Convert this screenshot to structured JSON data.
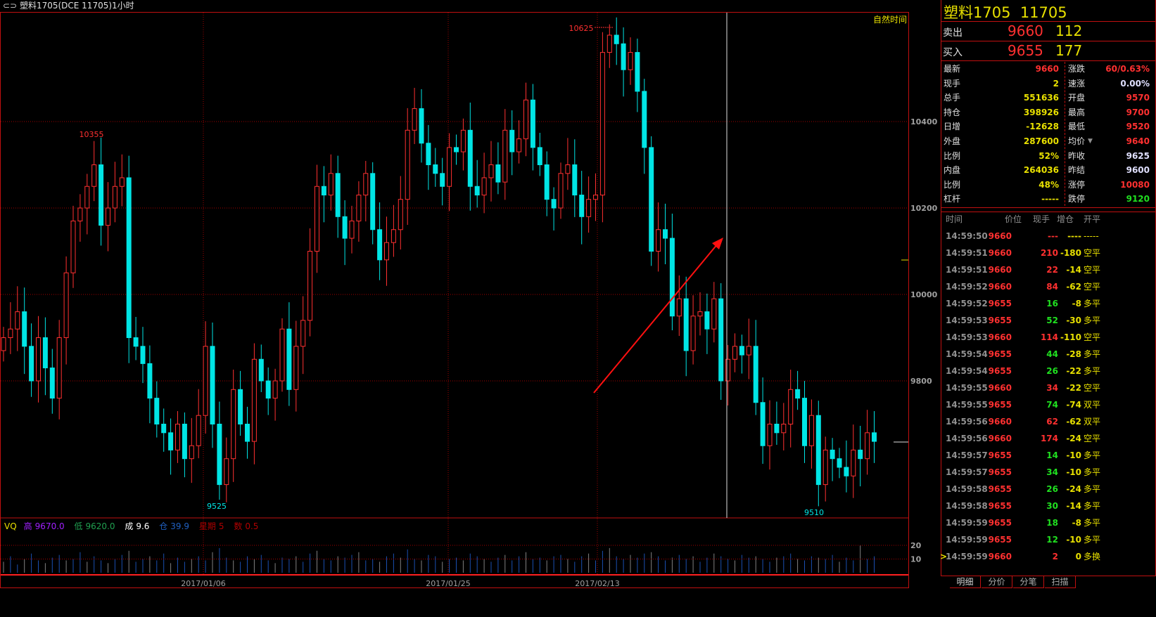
{
  "window": {
    "title": "塑料1705(DCE 11705)1小时",
    "link_icon": "link-icon"
  },
  "chart": {
    "time_mode": "自然时间",
    "y_ticks": [
      10400,
      10200,
      10000,
      9800
    ],
    "x_ticks": [
      "2017/01/06",
      "2017/01/25",
      "2017/02/13"
    ],
    "annotations": {
      "high_left": "10355",
      "low_left": "9525",
      "high_top": "10625",
      "low_right": "9510"
    },
    "colors": {
      "up": "#ff3030",
      "down": "#00e5e5",
      "grid": "#a00000",
      "arrow": "#ff1010"
    }
  },
  "chart_data": {
    "type": "candlestick",
    "x_tick_labels": [
      "2017/01/06",
      "2017/01/25",
      "2017/02/13"
    ],
    "ylim": [
      9486,
      10616
    ],
    "closes": [
      9900,
      9920,
      9960,
      9880,
      9800,
      9900,
      9830,
      9760,
      9900,
      10050,
      10170,
      10200,
      10250,
      10300,
      10160,
      10200,
      10250,
      10270,
      9900,
      9880,
      9840,
      9760,
      9700,
      9680,
      9640,
      9700,
      9620,
      9650,
      9720,
      9880,
      9700,
      9560,
      9620,
      9780,
      9700,
      9660,
      9850,
      9800,
      9760,
      9800,
      9920,
      9780,
      9880,
      9940,
      10100,
      10250,
      10230,
      10280,
      10180,
      10130,
      10170,
      10230,
      10280,
      10150,
      10080,
      10120,
      10150,
      10220,
      10380,
      10430,
      10350,
      10300,
      10280,
      10250,
      10340,
      10330,
      10380,
      10250,
      10230,
      10270,
      10300,
      10260,
      10380,
      10330,
      10360,
      10450,
      10340,
      10300,
      10220,
      10200,
      10280,
      10300,
      10230,
      10180,
      10220,
      10230,
      10560,
      10600,
      10580,
      10520,
      10560,
      10470,
      10340,
      10100,
      10150,
      10130,
      9950,
      9990,
      9870,
      9950,
      9960,
      9920,
      9990,
      9800,
      9850,
      9880,
      9860,
      9880,
      9750,
      9650,
      9700,
      9680,
      9700,
      9780,
      9760,
      9650,
      9720,
      9560,
      9640,
      9620,
      9600,
      9580,
      9640,
      9620,
      9680,
      9660
    ],
    "extremes": [
      {
        "index": 13,
        "high": 10355
      },
      {
        "index": 31,
        "low": 9525
      },
      {
        "index": 87,
        "high": 10625
      },
      {
        "index": 117,
        "low": 9510
      }
    ],
    "volume": {
      "y_ticks": [
        20,
        10
      ],
      "values": [
        8,
        12,
        6,
        10,
        14,
        9,
        7,
        11,
        13,
        9,
        10,
        15,
        8,
        12,
        9,
        7,
        10,
        13,
        16,
        8,
        10,
        12,
        9,
        14,
        7,
        11,
        8,
        10,
        12,
        9,
        15,
        18,
        11,
        9,
        8,
        12,
        10,
        13,
        9,
        7,
        11,
        10,
        12,
        8,
        14,
        16,
        10,
        9,
        12,
        11,
        13,
        15,
        9,
        10,
        8,
        12,
        14,
        11,
        17,
        10,
        9,
        13,
        12,
        8,
        10,
        11,
        9,
        14,
        12,
        10,
        8,
        11,
        13,
        9,
        12,
        15,
        10,
        11,
        9,
        12,
        13,
        10,
        8,
        12,
        14,
        9,
        16,
        18,
        12,
        10,
        13,
        11,
        14,
        15,
        12,
        9,
        11,
        13,
        10,
        12,
        8,
        11,
        14,
        12,
        10,
        9,
        13,
        11,
        12,
        10,
        8,
        11,
        12,
        14,
        10,
        9,
        12,
        11,
        10,
        13,
        8,
        11,
        9,
        20,
        10,
        12
      ]
    }
  },
  "vq": {
    "label": "VQ",
    "high_label": "高",
    "high": "9670.0",
    "low_label": "低",
    "low": "9620.0",
    "vol_label": "成",
    "vol": "9.6",
    "oi_label": "仓",
    "oi": "39.9",
    "week_label": "星期",
    "week": "5",
    "count_label": "数",
    "count": "0.5"
  },
  "quote": {
    "name": "塑料1705",
    "code": "11705",
    "ask": {
      "label": "卖出",
      "price": "9660",
      "qty": "112"
    },
    "bid": {
      "label": "买入",
      "price": "9655",
      "qty": "177"
    },
    "stats": [
      {
        "l": "最新",
        "v": "9660",
        "lc": "#ff3030",
        "r": "涨跌",
        "rv": "60/0.63%",
        "rc": "#ff3030"
      },
      {
        "l": "现手",
        "v": "2",
        "lc": "#e8e000",
        "r": "速涨",
        "rv": "0.00%",
        "rc": "#e0e0ff"
      },
      {
        "l": "总手",
        "v": "551636",
        "lc": "#e8e000",
        "r": "开盘",
        "rv": "9570",
        "rc": "#ff3030"
      },
      {
        "l": "持仓",
        "v": "398926",
        "lc": "#e8e000",
        "r": "最高",
        "rv": "9700",
        "rc": "#ff3030"
      },
      {
        "l": "日增",
        "v": "-12628",
        "lc": "#e8e000",
        "r": "最低",
        "rv": "9520",
        "rc": "#ff3030"
      },
      {
        "l": "外盘",
        "v": "287600",
        "lc": "#e8e000",
        "r": "均价",
        "rv": "9640",
        "rc": "#ff3030"
      },
      {
        "l": "比例",
        "v": "52%",
        "lc": "#e8e000",
        "r": "昨收",
        "rv": "9625",
        "rc": "#e0e0ff"
      },
      {
        "l": "内盘",
        "v": "264036",
        "lc": "#e8e000",
        "r": "昨结",
        "rv": "9600",
        "rc": "#e0e0ff"
      },
      {
        "l": "比例",
        "v": "48%",
        "lc": "#e8e000",
        "r": "涨停",
        "rv": "10080",
        "rc": "#ff3030"
      },
      {
        "l": "杠杆",
        "v": "-----",
        "lc": "#e8e000",
        "r": "跌停",
        "rv": "9120",
        "rc": "#20e020"
      }
    ]
  },
  "ticks": {
    "headers": [
      "时间",
      "价位",
      "现手",
      "增仓",
      "开平"
    ],
    "rows": [
      [
        "14:59:50",
        "9660",
        "---",
        "----",
        "-----"
      ],
      [
        "14:59:51",
        "9660",
        "210",
        "-180",
        "空平"
      ],
      [
        "14:59:51",
        "9660",
        "22",
        "-14",
        "空平"
      ],
      [
        "14:59:52",
        "9660",
        "84",
        "-62",
        "空平"
      ],
      [
        "14:59:52",
        "9655",
        "16",
        "-8",
        "多平"
      ],
      [
        "14:59:53",
        "9655",
        "52",
        "-30",
        "多平"
      ],
      [
        "14:59:53",
        "9660",
        "114",
        "-110",
        "空平"
      ],
      [
        "14:59:54",
        "9655",
        "44",
        "-28",
        "多平"
      ],
      [
        "14:59:54",
        "9655",
        "26",
        "-22",
        "多平"
      ],
      [
        "14:59:55",
        "9660",
        "34",
        "-22",
        "空平"
      ],
      [
        "14:59:55",
        "9655",
        "74",
        "-74",
        "双平"
      ],
      [
        "14:59:56",
        "9660",
        "62",
        "-62",
        "双平"
      ],
      [
        "14:59:56",
        "9660",
        "174",
        "-24",
        "空平"
      ],
      [
        "14:59:57",
        "9655",
        "14",
        "-10",
        "多平"
      ],
      [
        "14:59:57",
        "9655",
        "34",
        "-10",
        "多平"
      ],
      [
        "14:59:58",
        "9655",
        "26",
        "-24",
        "多平"
      ],
      [
        "14:59:58",
        "9655",
        "30",
        "-14",
        "多平"
      ],
      [
        "14:59:59",
        "9655",
        "18",
        "-8",
        "多平"
      ],
      [
        "14:59:59",
        "9655",
        "12",
        "-10",
        "多平"
      ],
      [
        "14:59:59",
        "9660",
        "2",
        "0",
        "多换"
      ]
    ],
    "current_marker": ">"
  },
  "tabs": [
    "明细",
    "分价",
    "分笔",
    "扫描"
  ]
}
